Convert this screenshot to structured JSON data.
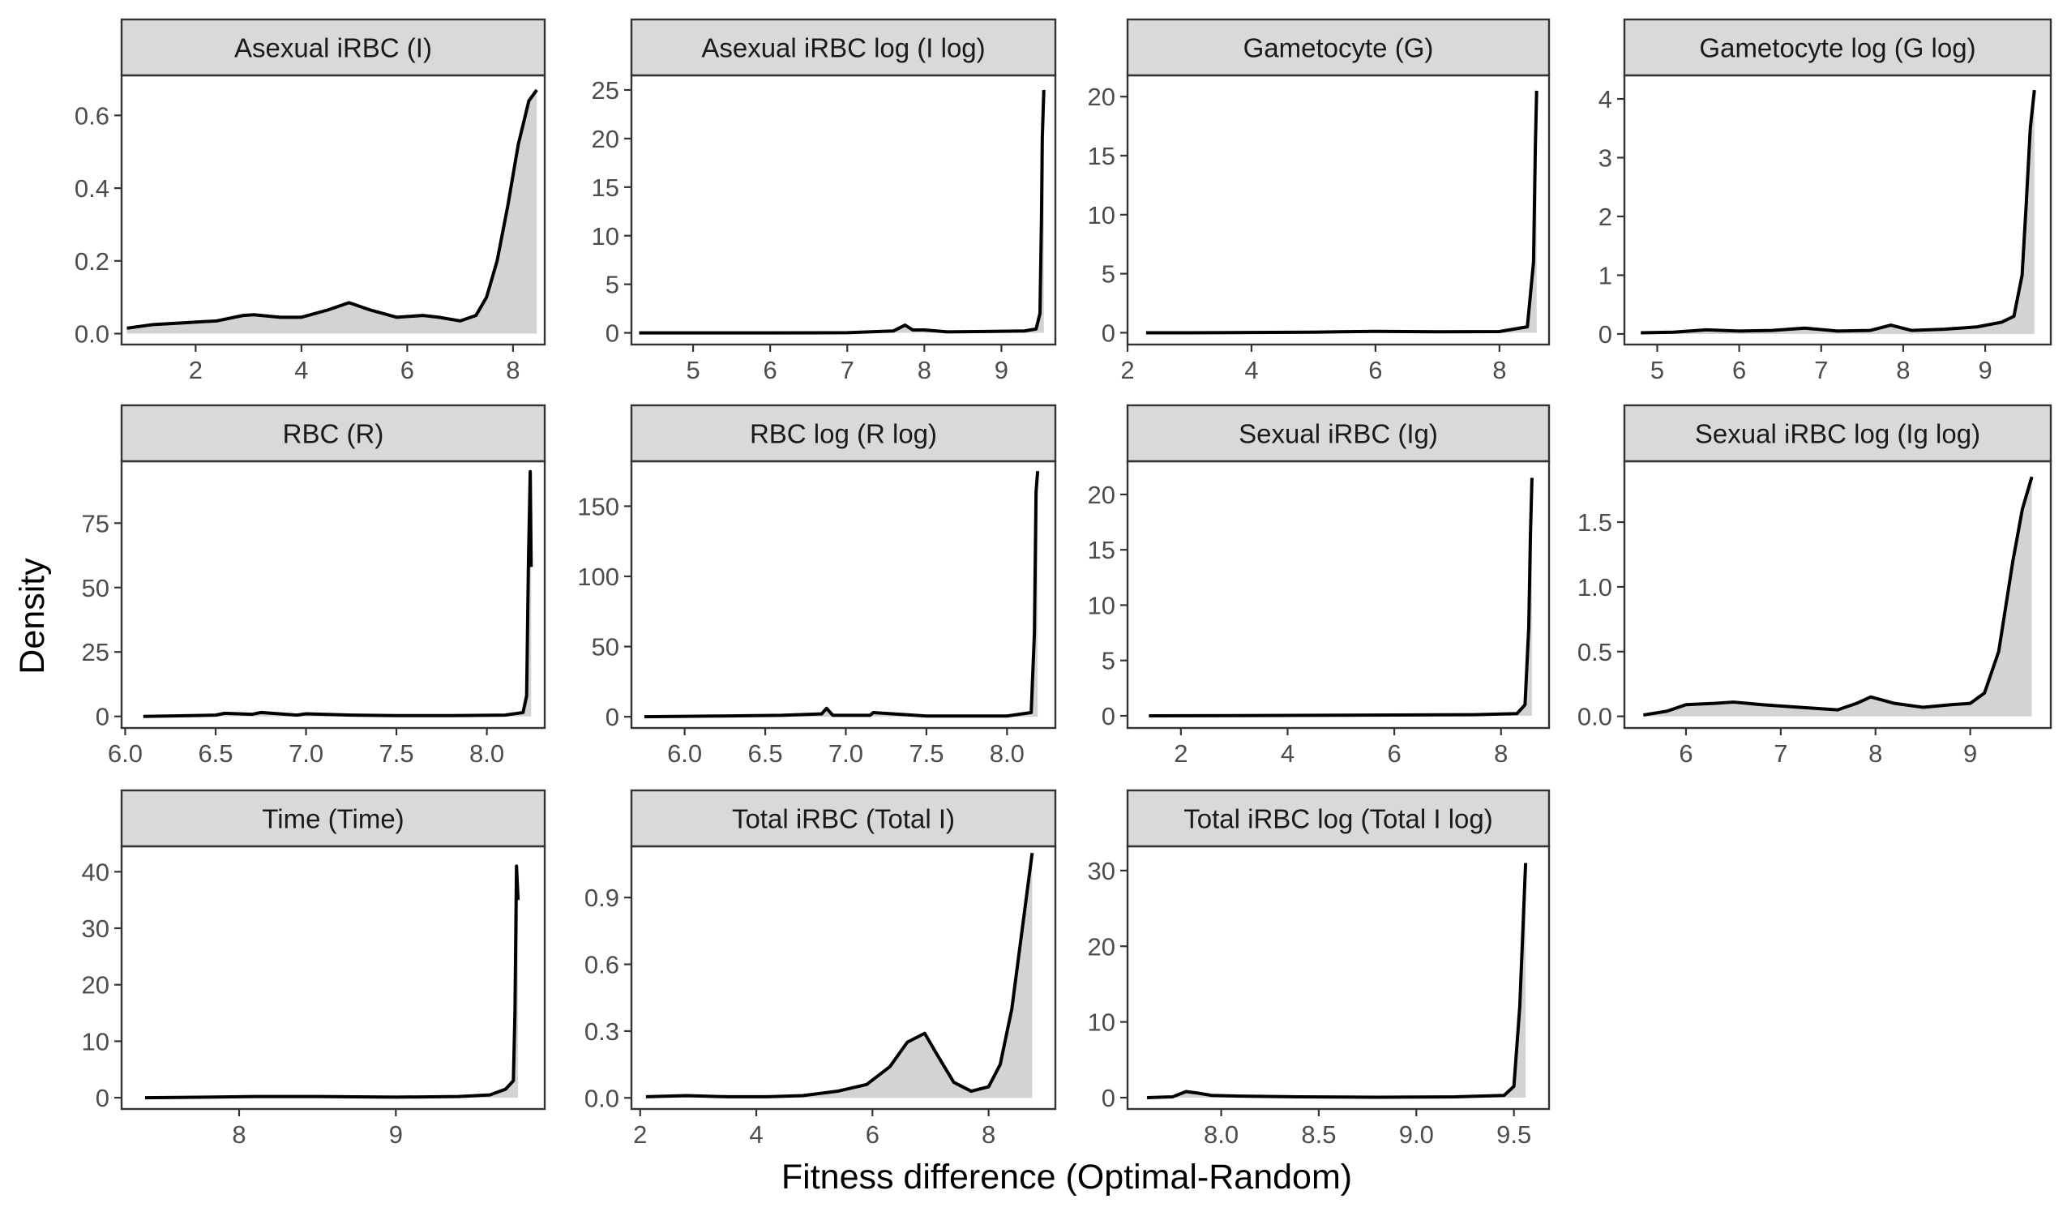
{
  "figure": {
    "xlabel": "Fitness difference (Optimal-Random)",
    "ylabel": "Density"
  },
  "chart_data": [
    {
      "type": "area",
      "title": "Asexual iRBC (I)",
      "xlim": [
        0.6,
        8.6
      ],
      "ylim": [
        -0.03,
        0.71
      ],
      "xticks": [
        2,
        4,
        6,
        8
      ],
      "xtick_labels": [
        "2",
        "4",
        "6",
        "8"
      ],
      "yticks": [
        0,
        0.2,
        0.4,
        0.6
      ],
      "ytick_labels": [
        "0.0",
        "0.2",
        "0.4",
        "0.6"
      ],
      "x": [
        0.7,
        1.2,
        1.8,
        2.4,
        2.9,
        3.1,
        3.6,
        4.0,
        4.5,
        4.9,
        5.3,
        5.8,
        6.3,
        6.6,
        7.0,
        7.3,
        7.5,
        7.7,
        7.9,
        8.1,
        8.3,
        8.45
      ],
      "y": [
        0.015,
        0.025,
        0.03,
        0.035,
        0.05,
        0.052,
        0.045,
        0.045,
        0.065,
        0.085,
        0.065,
        0.045,
        0.05,
        0.045,
        0.035,
        0.05,
        0.1,
        0.2,
        0.35,
        0.52,
        0.64,
        0.67
      ]
    },
    {
      "type": "area",
      "title": "Asexual iRBC log (I log)",
      "xlim": [
        4.2,
        9.7
      ],
      "ylim": [
        -1.2,
        26.5
      ],
      "xticks": [
        5,
        6,
        7,
        8,
        9
      ],
      "xtick_labels": [
        "5",
        "6",
        "7",
        "8",
        "9"
      ],
      "yticks": [
        0,
        5,
        10,
        15,
        20,
        25
      ],
      "ytick_labels": [
        "0",
        "5",
        "10",
        "15",
        "20",
        "25"
      ],
      "x": [
        4.3,
        5.0,
        6.0,
        7.0,
        7.6,
        7.75,
        7.85,
        8.0,
        8.3,
        8.8,
        9.3,
        9.45,
        9.5,
        9.52,
        9.53,
        9.55
      ],
      "y": [
        0,
        0,
        0,
        0.02,
        0.2,
        0.8,
        0.3,
        0.3,
        0.1,
        0.15,
        0.2,
        0.4,
        2,
        12,
        20,
        25
      ]
    },
    {
      "type": "area",
      "title": "Gametocyte (G)",
      "xlim": [
        2.0,
        8.8
      ],
      "ylim": [
        -1,
        21.8
      ],
      "xticks": [
        2,
        4,
        6,
        8
      ],
      "xtick_labels": [
        "2",
        "4",
        "6",
        "8"
      ],
      "yticks": [
        0,
        5,
        10,
        15,
        20
      ],
      "ytick_labels": [
        "0",
        "5",
        "10",
        "15",
        "20"
      ],
      "x": [
        2.3,
        3.0,
        4.0,
        5.0,
        6.0,
        7.0,
        8.0,
        8.45,
        8.55,
        8.58,
        8.6
      ],
      "y": [
        0,
        0,
        0.02,
        0.05,
        0.12,
        0.08,
        0.1,
        0.5,
        6,
        16,
        20.5
      ]
    },
    {
      "type": "area",
      "title": "Gametocyte log (G log)",
      "xlim": [
        4.6,
        9.8
      ],
      "ylim": [
        -0.18,
        4.4
      ],
      "xticks": [
        5,
        6,
        7,
        8,
        9
      ],
      "xtick_labels": [
        "5",
        "6",
        "7",
        "8",
        "9"
      ],
      "yticks": [
        0,
        1,
        2,
        3,
        4
      ],
      "ytick_labels": [
        "0",
        "1",
        "2",
        "3",
        "4"
      ],
      "x": [
        4.8,
        5.2,
        5.6,
        6.0,
        6.4,
        6.8,
        7.2,
        7.6,
        7.85,
        8.1,
        8.5,
        8.9,
        9.2,
        9.35,
        9.45,
        9.5,
        9.55,
        9.6
      ],
      "y": [
        0.02,
        0.03,
        0.07,
        0.05,
        0.06,
        0.1,
        0.05,
        0.06,
        0.15,
        0.06,
        0.08,
        0.12,
        0.2,
        0.3,
        1.0,
        2.2,
        3.5,
        4.15
      ]
    },
    {
      "type": "area",
      "title": "RBC (R)",
      "xlim": [
        5.98,
        8.32
      ],
      "ylim": [
        -4.5,
        99
      ],
      "xticks": [
        6.0,
        6.5,
        7.0,
        7.5,
        8.0
      ],
      "xtick_labels": [
        "6.0",
        "6.5",
        "7.0",
        "7.5",
        "8.0"
      ],
      "yticks": [
        0,
        25,
        50,
        75
      ],
      "ytick_labels": [
        "0",
        "25",
        "50",
        "75"
      ],
      "x": [
        6.1,
        6.3,
        6.5,
        6.55,
        6.7,
        6.75,
        6.95,
        7.0,
        7.25,
        7.5,
        7.8,
        8.1,
        8.2,
        8.22,
        8.23,
        8.24,
        8.245
      ],
      "y": [
        0,
        0.2,
        0.5,
        1.2,
        0.8,
        1.5,
        0.5,
        1.0,
        0.5,
        0.3,
        0.3,
        0.5,
        1.5,
        8,
        60,
        95,
        58
      ]
    },
    {
      "type": "area",
      "title": "RBC log (R log)",
      "xlim": [
        5.67,
        8.3
      ],
      "ylim": [
        -8,
        182
      ],
      "xticks": [
        6.0,
        6.5,
        7.0,
        7.5,
        8.0
      ],
      "xtick_labels": [
        "6.0",
        "6.5",
        "7.0",
        "7.5",
        "8.0"
      ],
      "yticks": [
        0,
        50,
        100,
        150
      ],
      "ytick_labels": [
        "0",
        "50",
        "100",
        "150"
      ],
      "x": [
        5.75,
        6.2,
        6.6,
        6.85,
        6.88,
        6.92,
        7.15,
        7.17,
        7.5,
        8.0,
        8.15,
        8.17,
        8.18,
        8.19
      ],
      "y": [
        0,
        0.5,
        1,
        2,
        6,
        1,
        1,
        3,
        0.5,
        0.5,
        3,
        60,
        160,
        175
      ]
    },
    {
      "type": "area",
      "title": "Sexual iRBC (Ig)",
      "xlim": [
        1.0,
        8.9
      ],
      "ylim": [
        -1.1,
        23
      ],
      "xticks": [
        2,
        4,
        6,
        8
      ],
      "xtick_labels": [
        "2",
        "4",
        "6",
        "8"
      ],
      "yticks": [
        0,
        5,
        10,
        15,
        20
      ],
      "ytick_labels": [
        "0",
        "5",
        "10",
        "15",
        "20"
      ],
      "x": [
        1.4,
        3.0,
        5.0,
        6.5,
        7.5,
        8.3,
        8.45,
        8.52,
        8.55,
        8.58
      ],
      "y": [
        0,
        0.02,
        0.05,
        0.08,
        0.1,
        0.2,
        1.0,
        8,
        16,
        21.5
      ]
    },
    {
      "type": "area",
      "title": "Sexual iRBC log (Ig log)",
      "xlim": [
        5.35,
        9.85
      ],
      "ylim": [
        -0.09,
        1.97
      ],
      "xticks": [
        6,
        7,
        8,
        9
      ],
      "xtick_labels": [
        "6",
        "7",
        "8",
        "9"
      ],
      "yticks": [
        0,
        0.5,
        1.0,
        1.5
      ],
      "ytick_labels": [
        "0.0",
        "0.5",
        "1.0",
        "1.5"
      ],
      "x": [
        5.55,
        5.8,
        6.0,
        6.3,
        6.5,
        6.8,
        7.2,
        7.6,
        7.8,
        7.95,
        8.2,
        8.5,
        8.8,
        9.0,
        9.15,
        9.3,
        9.45,
        9.55,
        9.65
      ],
      "y": [
        0.01,
        0.04,
        0.09,
        0.1,
        0.11,
        0.09,
        0.07,
        0.05,
        0.1,
        0.15,
        0.1,
        0.07,
        0.09,
        0.1,
        0.18,
        0.5,
        1.2,
        1.6,
        1.85
      ]
    },
    {
      "type": "area",
      "title": "Time (Time)",
      "xlim": [
        7.25,
        9.95
      ],
      "ylim": [
        -2,
        44.5
      ],
      "xticks": [
        8,
        9
      ],
      "xtick_labels": [
        "8",
        "9"
      ],
      "yticks": [
        0,
        10,
        20,
        30,
        40
      ],
      "ytick_labels": [
        "0",
        "10",
        "20",
        "30",
        "40"
      ],
      "x": [
        7.4,
        7.8,
        8.1,
        8.5,
        9.0,
        9.4,
        9.6,
        9.7,
        9.75,
        9.76,
        9.77,
        9.78
      ],
      "y": [
        0,
        0.1,
        0.2,
        0.2,
        0.1,
        0.2,
        0.5,
        1.5,
        3,
        15,
        41,
        35
      ]
    },
    {
      "type": "area",
      "title": "Total iRBC (Total I)",
      "xlim": [
        1.85,
        9.15
      ],
      "ylim": [
        -0.05,
        1.13
      ],
      "xticks": [
        2,
        4,
        6,
        8
      ],
      "xtick_labels": [
        "2",
        "4",
        "6",
        "8"
      ],
      "yticks": [
        0,
        0.3,
        0.6,
        0.9
      ],
      "ytick_labels": [
        "0.0",
        "0.3",
        "0.6",
        "0.9"
      ],
      "x": [
        2.1,
        2.8,
        3.5,
        4.2,
        4.8,
        5.4,
        5.9,
        6.3,
        6.6,
        6.9,
        7.1,
        7.4,
        7.7,
        8.0,
        8.2,
        8.4,
        8.6,
        8.75
      ],
      "y": [
        0.005,
        0.01,
        0.005,
        0.005,
        0.01,
        0.03,
        0.06,
        0.14,
        0.25,
        0.29,
        0.2,
        0.07,
        0.03,
        0.05,
        0.15,
        0.4,
        0.8,
        1.1
      ]
    },
    {
      "type": "area",
      "title": "Total iRBC log (Total I log)",
      "xlim": [
        7.52,
        9.68
      ],
      "ylim": [
        -1.5,
        33.2
      ],
      "xticks": [
        8.0,
        8.5,
        9.0,
        9.5
      ],
      "xtick_labels": [
        "8.0",
        "8.5",
        "9.0",
        "9.5"
      ],
      "yticks": [
        0,
        10,
        20,
        30
      ],
      "ytick_labels": [
        "0",
        "10",
        "20",
        "30"
      ],
      "x": [
        7.62,
        7.75,
        7.82,
        7.88,
        7.95,
        8.1,
        8.4,
        8.8,
        9.2,
        9.45,
        9.5,
        9.53,
        9.56
      ],
      "y": [
        0,
        0.1,
        0.8,
        0.6,
        0.3,
        0.2,
        0.1,
        0.05,
        0.1,
        0.3,
        1.5,
        12,
        31
      ]
    }
  ]
}
